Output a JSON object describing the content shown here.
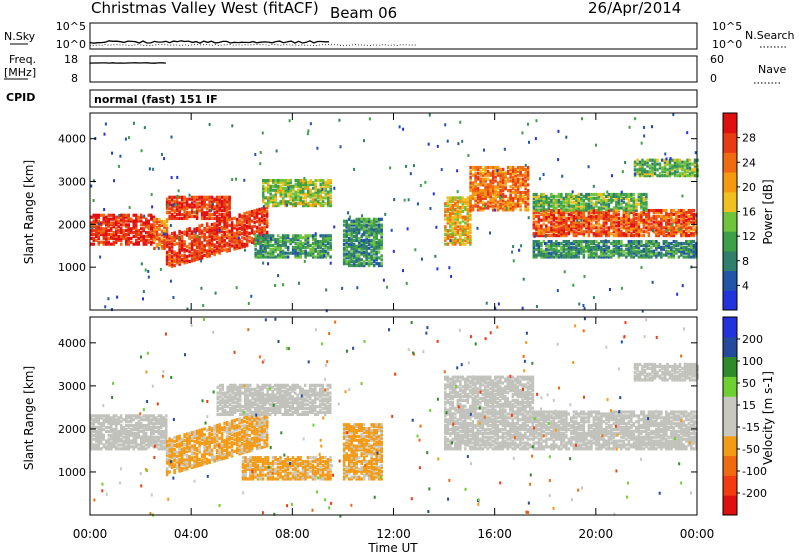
{
  "header": {
    "station": "Christmas Valley West (fitACF)",
    "beam": "Beam 06",
    "date": "26/Apr/2014"
  },
  "status_panel": {
    "nsky_label": "N.Sky",
    "nsky_ticks": [
      "10^5",
      "10^0"
    ],
    "nsearch_label": "N.Search",
    "nsearch_ticks": [
      "10^5",
      "10^0"
    ],
    "freq_label_1": "Freq.",
    "freq_label_2": "[MHz]",
    "freq_ticks": [
      "18",
      "8"
    ],
    "nave_label": "Nave",
    "nave_ticks": [
      "60",
      "0"
    ],
    "cpid_label": "CPID",
    "cpid_value": "normal (fast) 151 IF"
  },
  "x_axis": {
    "title": "Time UT",
    "ticks": [
      "00:00",
      "04:00",
      "08:00",
      "12:00",
      "16:00",
      "20:00",
      "00:00"
    ]
  },
  "colors": {
    "power_scale": [
      "#2233dd",
      "#2255a8",
      "#2f7f6a",
      "#3da047",
      "#6fc43c",
      "#f0c020",
      "#f59a10",
      "#f06a12",
      "#e83b14",
      "#e01010"
    ],
    "velocity_scale": [
      "#e01010",
      "#f23c10",
      "#f06a12",
      "#f39a16",
      "#c8c8c0",
      "#c8c8c0",
      "#6dd030",
      "#2f8a2a",
      "#234a9c",
      "#2233dd"
    ],
    "ground_scatter": "#c2c2bc"
  },
  "chart_data": [
    {
      "type": "heatmap",
      "name": "power",
      "ylabel": "Slant Range [km]",
      "yticks": [
        1000,
        2000,
        3000,
        4000
      ],
      "ylim": [
        0,
        4600
      ],
      "xlim_hours": [
        0,
        24
      ],
      "colorbar_label": "Power [dB]",
      "colorbar_ticks": [
        "4",
        "8",
        "12",
        "16",
        "20",
        "24",
        "28"
      ],
      "colorbar_range": [
        0,
        30
      ],
      "regions": [
        {
          "t": [
            0,
            2.5
          ],
          "r": [
            1500,
            2200
          ],
          "v": 27
        },
        {
          "t": [
            2.5,
            3.0
          ],
          "r": [
            1400,
            2100
          ],
          "v": 22
        },
        {
          "t": [
            3.0,
            7.0
          ],
          "r": [
            950,
            2400
          ],
          "v": 26,
          "slope": 1
        },
        {
          "t": [
            3.0,
            5.5
          ],
          "r": [
            2100,
            2600
          ],
          "v": 26
        },
        {
          "t": [
            6.8,
            9.5
          ],
          "r": [
            2400,
            3000
          ],
          "v": 14
        },
        {
          "t": [
            6.5,
            9.5
          ],
          "r": [
            1200,
            1700
          ],
          "v": 10
        },
        {
          "t": [
            10,
            11.5
          ],
          "r": [
            1000,
            2100
          ],
          "v": 9
        },
        {
          "t": [
            14.0,
            15.0
          ],
          "r": [
            1500,
            2600
          ],
          "v": 18
        },
        {
          "t": [
            15.0,
            17.3
          ],
          "r": [
            2300,
            3300
          ],
          "v": 22
        },
        {
          "t": [
            17.5,
            24
          ],
          "r": [
            1700,
            2300
          ],
          "v": 24
        },
        {
          "t": [
            17.5,
            24
          ],
          "r": [
            1200,
            1600
          ],
          "v": 9
        },
        {
          "t": [
            17.5,
            22
          ],
          "r": [
            2300,
            2700
          ],
          "v": 12
        },
        {
          "t": [
            21.5,
            24
          ],
          "r": [
            3100,
            3500
          ],
          "v": 12
        }
      ]
    },
    {
      "type": "heatmap",
      "name": "velocity",
      "ylabel": "Slant Range [km]",
      "yticks": [
        1000,
        2000,
        3000,
        4000
      ],
      "ylim": [
        0,
        4600
      ],
      "xlim_hours": [
        0,
        24
      ],
      "colorbar_label": "Velocity [m s-1]",
      "colorbar_ticks": [
        "-200",
        "-100",
        "-50",
        "-15",
        "15",
        "50",
        "100",
        "200"
      ],
      "colorbar_range": [
        -250,
        250
      ],
      "regions": [
        {
          "t": [
            0,
            3.0
          ],
          "r": [
            1500,
            2300
          ],
          "v": 0
        },
        {
          "t": [
            3.0,
            7.0
          ],
          "r": [
            900,
            2400
          ],
          "v": -60,
          "slope": 1
        },
        {
          "t": [
            5.0,
            9.5
          ],
          "r": [
            2300,
            3000
          ],
          "v": 0
        },
        {
          "t": [
            6.0,
            9.5
          ],
          "r": [
            800,
            1300
          ],
          "v": -60
        },
        {
          "t": [
            10,
            11.5
          ],
          "r": [
            800,
            2100
          ],
          "v": -60
        },
        {
          "t": [
            14.0,
            17.5
          ],
          "r": [
            1500,
            3200
          ],
          "v": 0
        },
        {
          "t": [
            17.5,
            24
          ],
          "r": [
            1500,
            2400
          ],
          "v": 0
        },
        {
          "t": [
            21.5,
            24
          ],
          "r": [
            3100,
            3500
          ],
          "v": 0
        }
      ]
    }
  ]
}
